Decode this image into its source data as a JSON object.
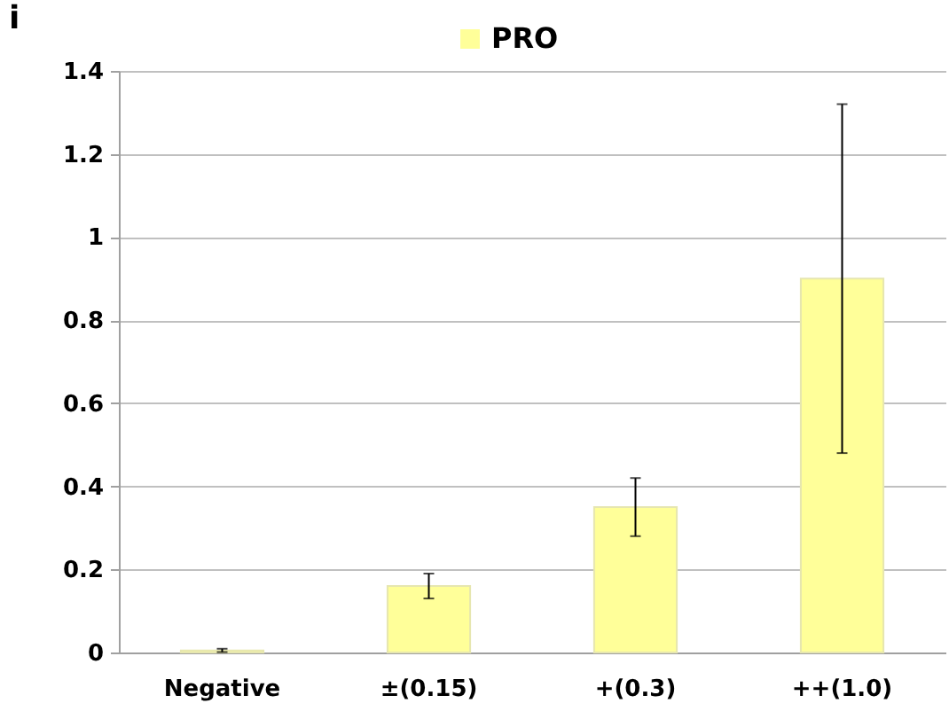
{
  "chart_data": {
    "type": "bar",
    "title": "i",
    "categories": [
      "Negative",
      "±(0.15)",
      "+(0.3)",
      "++(1.0)"
    ],
    "series": [
      {
        "name": "PRO",
        "color": "#ffff99",
        "values": [
          0.005,
          0.16,
          0.35,
          0.9
        ],
        "errors": [
          0.004,
          [
            0.13,
            0.19
          ],
          [
            0.28,
            0.42
          ],
          [
            0.48,
            1.32
          ]
        ]
      }
    ],
    "ylim": [
      0,
      1.4
    ],
    "yticks": [
      0,
      0.2,
      0.4,
      0.6,
      0.8,
      1,
      1.2,
      1.4
    ],
    "grid": "y",
    "legend": "top"
  }
}
